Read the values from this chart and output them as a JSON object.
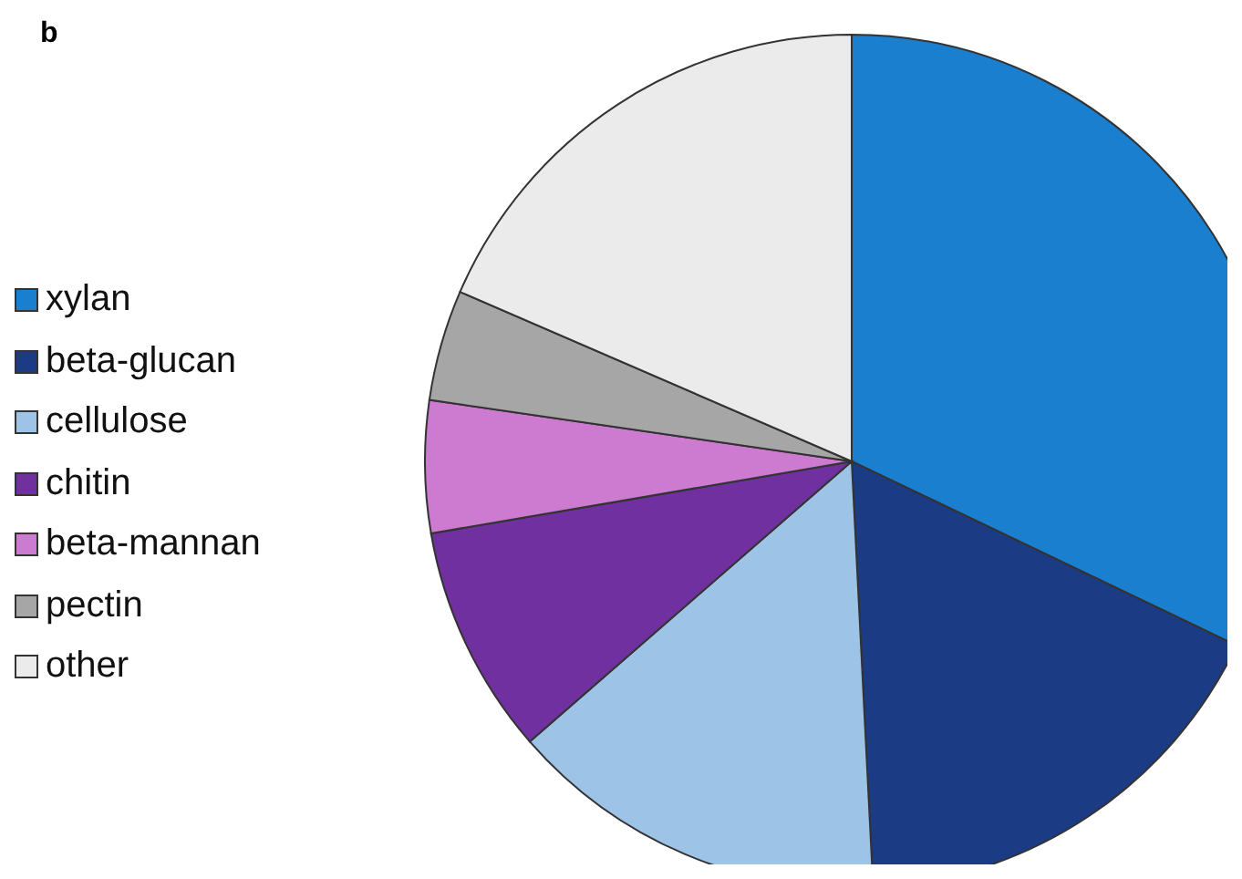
{
  "chart_data": {
    "type": "pie",
    "title": "b",
    "categories": [
      "xylan",
      "beta-glucan",
      "cellulose",
      "chitin",
      "beta-mannan",
      "pectin",
      "other"
    ],
    "values": [
      32.1,
      17.1,
      14.4,
      8.7,
      5.0,
      4.2,
      18.5
    ],
    "colors": [
      "#1b7fd0",
      "#1c3b85",
      "#9dc3e6",
      "#7030a0",
      "#cc7bd0",
      "#a6a6a6",
      "#ebebeb"
    ],
    "legend": "left"
  }
}
